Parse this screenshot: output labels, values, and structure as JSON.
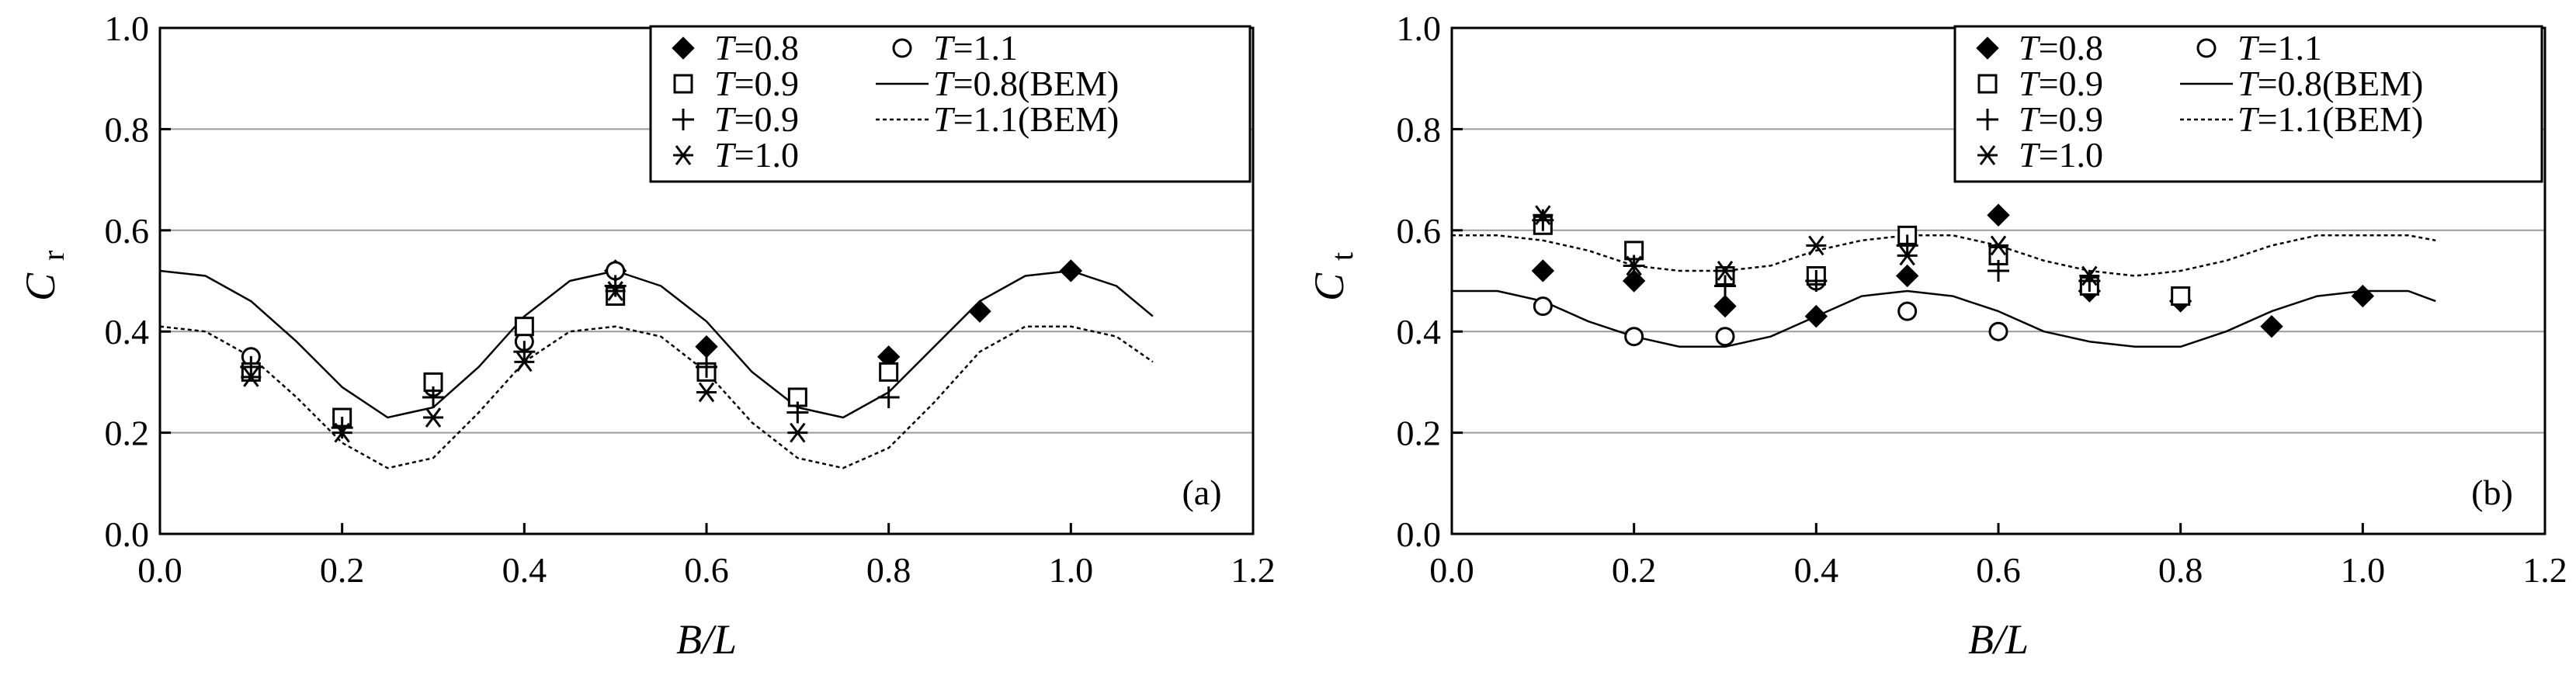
{
  "legend": {
    "entries": [
      {
        "key": "T08",
        "var": "T",
        "text": "=0.8",
        "marker": "diamond"
      },
      {
        "key": "T11",
        "var": "T",
        "text": "=1.1",
        "marker": "circle"
      },
      {
        "key": "T09a",
        "var": "T",
        "text": "=0.9",
        "marker": "square"
      },
      {
        "key": "T08BEM",
        "var": "T",
        "text": "=0.8(BEM)",
        "marker": "solid-line"
      },
      {
        "key": "T09b",
        "var": "T",
        "text": "=0.9",
        "marker": "plus"
      },
      {
        "key": "T11BEM",
        "var": "T",
        "text": "=1.1(BEM)",
        "marker": "dashed-line"
      },
      {
        "key": "T10",
        "var": "T",
        "text": "=1.0",
        "marker": "asterisk"
      }
    ]
  },
  "chart_data": [
    {
      "type": "scatter",
      "panel_label": "(a)",
      "xlabel": "B/L",
      "ylabel": "C",
      "ylabel_sub": "r",
      "xlim": [
        0.0,
        1.2
      ],
      "ylim": [
        0.0,
        1.0
      ],
      "xticks": [
        "0.0",
        "0.2",
        "0.4",
        "0.6",
        "0.8",
        "1.0",
        "1.2"
      ],
      "yticks": [
        "0.0",
        "0.2",
        "0.4",
        "0.6",
        "0.8",
        "1.0"
      ],
      "grid": "horizontal",
      "legend_position": "top-right",
      "series": [
        {
          "key": "T08",
          "marker": "diamond",
          "points": [
            [
              0.5,
              0.52
            ],
            [
              0.6,
              0.37
            ],
            [
              0.8,
              0.35
            ],
            [
              0.9,
              0.44
            ],
            [
              1.0,
              0.52
            ]
          ]
        },
        {
          "key": "T11",
          "marker": "circle",
          "points": [
            [
              0.1,
              0.35
            ],
            [
              0.2,
              0.23
            ],
            [
              0.3,
              0.29
            ],
            [
              0.4,
              0.38
            ],
            [
              0.5,
              0.52
            ]
          ]
        },
        {
          "key": "T09a",
          "marker": "square",
          "points": [
            [
              0.1,
              0.32
            ],
            [
              0.2,
              0.23
            ],
            [
              0.3,
              0.3
            ],
            [
              0.4,
              0.41
            ],
            [
              0.5,
              0.47
            ],
            [
              0.6,
              0.32
            ],
            [
              0.7,
              0.27
            ],
            [
              0.8,
              0.32
            ]
          ]
        },
        {
          "key": "T09b",
          "marker": "plus",
          "points": [
            [
              0.1,
              0.33
            ],
            [
              0.2,
              0.21
            ],
            [
              0.3,
              0.27
            ],
            [
              0.4,
              0.36
            ],
            [
              0.5,
              0.49
            ],
            [
              0.6,
              0.33
            ],
            [
              0.7,
              0.24
            ],
            [
              0.8,
              0.27
            ]
          ]
        },
        {
          "key": "T10",
          "marker": "asterisk",
          "points": [
            [
              0.1,
              0.31
            ],
            [
              0.2,
              0.2
            ],
            [
              0.3,
              0.23
            ],
            [
              0.4,
              0.34
            ],
            [
              0.5,
              0.48
            ],
            [
              0.6,
              0.28
            ],
            [
              0.7,
              0.2
            ]
          ]
        },
        {
          "key": "T08BEM",
          "marker": "solid-line",
          "x": [
            0.0,
            0.05,
            0.1,
            0.15,
            0.2,
            0.25,
            0.3,
            0.35,
            0.4,
            0.45,
            0.5,
            0.55,
            0.6,
            0.65,
            0.7,
            0.75,
            0.8,
            0.85,
            0.9,
            0.95,
            1.0,
            1.05,
            1.09
          ],
          "y": [
            0.52,
            0.51,
            0.46,
            0.38,
            0.29,
            0.23,
            0.25,
            0.33,
            0.43,
            0.5,
            0.52,
            0.49,
            0.42,
            0.32,
            0.25,
            0.23,
            0.28,
            0.37,
            0.46,
            0.51,
            0.52,
            0.49,
            0.43
          ]
        },
        {
          "key": "T11BEM",
          "marker": "dashed-line",
          "x": [
            0.0,
            0.05,
            0.1,
            0.15,
            0.2,
            0.25,
            0.3,
            0.35,
            0.4,
            0.45,
            0.5,
            0.55,
            0.6,
            0.65,
            0.7,
            0.75,
            0.8,
            0.85,
            0.9,
            0.95,
            1.0,
            1.05,
            1.09
          ],
          "y": [
            0.41,
            0.4,
            0.35,
            0.27,
            0.18,
            0.13,
            0.15,
            0.24,
            0.34,
            0.4,
            0.41,
            0.39,
            0.32,
            0.22,
            0.15,
            0.13,
            0.17,
            0.26,
            0.36,
            0.41,
            0.41,
            0.39,
            0.34
          ]
        }
      ]
    },
    {
      "type": "scatter",
      "panel_label": "(b)",
      "xlabel": "B/L",
      "ylabel": "C",
      "ylabel_sub": "t",
      "xlim": [
        0.0,
        1.2
      ],
      "ylim": [
        0.0,
        1.0
      ],
      "xticks": [
        "0.0",
        "0.2",
        "0.4",
        "0.6",
        "0.8",
        "1.0",
        "1.2"
      ],
      "yticks": [
        "0.0",
        "0.2",
        "0.4",
        "0.6",
        "0.8",
        "1.0"
      ],
      "grid": "horizontal",
      "legend_position": "top-right",
      "series": [
        {
          "key": "T08",
          "marker": "diamond",
          "points": [
            [
              0.1,
              0.52
            ],
            [
              0.2,
              0.5
            ],
            [
              0.3,
              0.45
            ],
            [
              0.4,
              0.43
            ],
            [
              0.5,
              0.51
            ],
            [
              0.6,
              0.63
            ],
            [
              0.7,
              0.48
            ],
            [
              0.8,
              0.46
            ],
            [
              0.9,
              0.41
            ],
            [
              1.0,
              0.47
            ]
          ]
        },
        {
          "key": "T11",
          "marker": "circle",
          "points": [
            [
              0.1,
              0.45
            ],
            [
              0.2,
              0.39
            ],
            [
              0.3,
              0.39
            ],
            [
              0.4,
              0.5
            ],
            [
              0.5,
              0.44
            ],
            [
              0.6,
              0.4
            ]
          ]
        },
        {
          "key": "T09a",
          "marker": "square",
          "points": [
            [
              0.1,
              0.61
            ],
            [
              0.2,
              0.56
            ],
            [
              0.3,
              0.51
            ],
            [
              0.4,
              0.51
            ],
            [
              0.5,
              0.59
            ],
            [
              0.6,
              0.55
            ],
            [
              0.7,
              0.49
            ],
            [
              0.8,
              0.47
            ]
          ]
        },
        {
          "key": "T09b",
          "marker": "plus",
          "points": [
            [
              0.1,
              0.62
            ],
            [
              0.2,
              0.53
            ],
            [
              0.3,
              0.49
            ],
            [
              0.4,
              0.5
            ],
            [
              0.5,
              0.57
            ],
            [
              0.6,
              0.52
            ],
            [
              0.7,
              0.5
            ]
          ]
        },
        {
          "key": "T10",
          "marker": "asterisk",
          "points": [
            [
              0.1,
              0.63
            ],
            [
              0.2,
              0.53
            ],
            [
              0.3,
              0.52
            ],
            [
              0.4,
              0.57
            ],
            [
              0.5,
              0.55
            ],
            [
              0.6,
              0.57
            ],
            [
              0.7,
              0.51
            ]
          ]
        },
        {
          "key": "T08BEM",
          "marker": "solid-line",
          "x": [
            0.0,
            0.05,
            0.1,
            0.15,
            0.2,
            0.25,
            0.3,
            0.35,
            0.4,
            0.45,
            0.5,
            0.55,
            0.6,
            0.65,
            0.7,
            0.75,
            0.8,
            0.85,
            0.9,
            0.95,
            1.0,
            1.05,
            1.08
          ],
          "y": [
            0.48,
            0.48,
            0.46,
            0.42,
            0.39,
            0.37,
            0.37,
            0.39,
            0.43,
            0.47,
            0.48,
            0.47,
            0.44,
            0.4,
            0.38,
            0.37,
            0.37,
            0.4,
            0.44,
            0.47,
            0.48,
            0.48,
            0.46
          ]
        },
        {
          "key": "T11BEM",
          "marker": "dashed-line",
          "x": [
            0.0,
            0.05,
            0.1,
            0.15,
            0.2,
            0.25,
            0.3,
            0.35,
            0.4,
            0.45,
            0.5,
            0.55,
            0.6,
            0.65,
            0.7,
            0.75,
            0.8,
            0.85,
            0.9,
            0.95,
            1.0,
            1.05,
            1.08
          ],
          "y": [
            0.59,
            0.59,
            0.58,
            0.56,
            0.53,
            0.52,
            0.52,
            0.53,
            0.56,
            0.58,
            0.59,
            0.59,
            0.57,
            0.54,
            0.52,
            0.51,
            0.52,
            0.54,
            0.57,
            0.59,
            0.59,
            0.59,
            0.58
          ]
        }
      ]
    }
  ]
}
